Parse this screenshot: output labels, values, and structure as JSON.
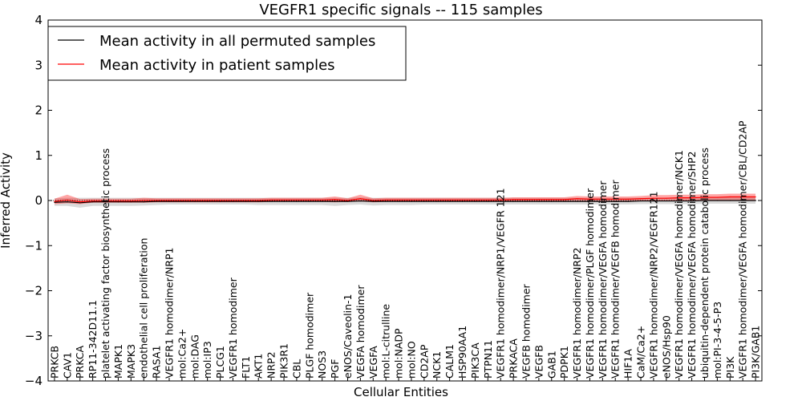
{
  "chart_data": {
    "type": "line",
    "title": "VEGFR1 specific signals -- 115 samples",
    "xlabel": "Cellular Entities",
    "ylabel": "Inferred Activity",
    "ylim": [
      -4,
      4
    ],
    "yticks": [
      "−4",
      "−3",
      "−2",
      "−1",
      "0",
      "1",
      "2",
      "3",
      "4"
    ],
    "ytick_values": [
      -4,
      -3,
      -2,
      -1,
      0,
      1,
      2,
      3,
      4
    ],
    "grid": false,
    "legend_position": "top-left",
    "categories": [
      "PRKCB",
      "CAV1",
      "PRKCA",
      "RP11-342D11.1",
      "platelet activating factor biosynthetic process",
      "MAPK1",
      "MAPK3",
      "endothelial cell proliferation",
      "RASA1",
      "VEGFR1 homodimer/NRP1",
      "mol:Ca2+",
      "mol:DAG",
      "mol:IP3",
      "PLCG1",
      "VEGFR1 homodimer",
      "FLT1",
      "AKT1",
      "NRP2",
      "PIK3R1",
      "CBL",
      "PLGF homodimer",
      "NOS3",
      "PGF",
      "eNOS/Caveolin-1",
      "VEGFA homodimer",
      "VEGFA",
      "mol:L-citrulline",
      "mol:NADP",
      "mol:NO",
      "CD2AP",
      "NCK1",
      "CALM1",
      "HSP90AA1",
      "PIK3CA",
      "PTPN11",
      "VEGFR1 homodimer/NRP1/VEGFR 121",
      "PRKACA",
      "VEGFB homodimer",
      "VEGFB",
      "GAB1",
      "PDPK1",
      "VEGFR1 homodimer/NRP2",
      "VEGFR1 homodimer/PLGF homodimer",
      "VEGFR1 homodimer/VEGFA homodimer",
      "VEGFR1 homodimer/VEGFB homodimer",
      "HIF1A",
      "CaM/Ca2+",
      "VEGFR1 homodimer/NRP2/VEGFR121",
      "eNOS/Hsp90",
      "VEGFR1 homodimer/VEGFA homodimer/NCK1",
      "VEGFR1 homodimer/VEGFA homodimer/SHP2",
      "ubiquitin-dependent protein catabolic process",
      "mol:PI-3-4-5-P3",
      "PI3K",
      "VEGFR1 homodimer/VEGFA homodimer/CBL/CD2AP",
      "PI3K/GAB1"
    ],
    "series": [
      {
        "name": "Mean activity in all permuted samples",
        "color": "#000000",
        "values": [
          -0.04,
          -0.03,
          -0.05,
          -0.03,
          -0.03,
          -0.03,
          -0.03,
          -0.03,
          -0.02,
          -0.02,
          -0.02,
          -0.02,
          -0.02,
          -0.02,
          -0.02,
          -0.02,
          -0.02,
          -0.02,
          -0.02,
          -0.02,
          -0.02,
          -0.02,
          -0.02,
          -0.02,
          -0.01,
          -0.02,
          -0.02,
          -0.02,
          -0.02,
          -0.02,
          -0.02,
          -0.02,
          -0.02,
          -0.02,
          -0.02,
          -0.02,
          -0.02,
          -0.02,
          -0.02,
          -0.02,
          -0.02,
          -0.02,
          -0.02,
          -0.02,
          -0.02,
          -0.02,
          -0.01,
          -0.01,
          -0.01,
          -0.01,
          -0.01,
          0.0,
          0.0,
          0.0,
          0.0,
          0.0
        ],
        "band_lower": [
          -0.12,
          -0.12,
          -0.16,
          -0.12,
          -0.12,
          -0.12,
          -0.12,
          -0.11,
          -0.1,
          -0.09,
          -0.09,
          -0.09,
          -0.09,
          -0.09,
          -0.09,
          -0.09,
          -0.1,
          -0.1,
          -0.1,
          -0.1,
          -0.1,
          -0.1,
          -0.12,
          -0.1,
          -0.09,
          -0.11,
          -0.1,
          -0.1,
          -0.1,
          -0.09,
          -0.09,
          -0.09,
          -0.09,
          -0.09,
          -0.09,
          -0.09,
          -0.09,
          -0.09,
          -0.09,
          -0.09,
          -0.09,
          -0.09,
          -0.09,
          -0.09,
          -0.09,
          -0.09,
          -0.08,
          -0.08,
          -0.08,
          -0.08,
          -0.08,
          -0.07,
          -0.07,
          -0.07,
          -0.07,
          -0.07
        ],
        "band_upper": [
          0.05,
          0.06,
          0.06,
          0.06,
          0.06,
          0.06,
          0.06,
          0.06,
          0.06,
          0.06,
          0.06,
          0.06,
          0.06,
          0.06,
          0.06,
          0.06,
          0.06,
          0.06,
          0.06,
          0.06,
          0.06,
          0.06,
          0.06,
          0.06,
          0.07,
          0.06,
          0.06,
          0.06,
          0.06,
          0.06,
          0.06,
          0.06,
          0.06,
          0.06,
          0.06,
          0.06,
          0.06,
          0.06,
          0.06,
          0.06,
          0.06,
          0.06,
          0.06,
          0.06,
          0.06,
          0.06,
          0.06,
          0.06,
          0.06,
          0.06,
          0.06,
          0.07,
          0.07,
          0.07,
          0.07,
          0.07
        ]
      },
      {
        "name": "Mean activity in patient samples",
        "color": "#ff0000",
        "values": [
          -0.02,
          0.01,
          -0.03,
          -0.01,
          -0.01,
          -0.01,
          -0.01,
          0.0,
          0.0,
          0.0,
          0.0,
          0.0,
          0.0,
          0.0,
          0.0,
          0.0,
          0.0,
          0.01,
          0.01,
          0.01,
          0.01,
          0.01,
          0.02,
          0.0,
          0.04,
          0.0,
          0.01,
          0.01,
          0.01,
          0.01,
          0.01,
          0.01,
          0.01,
          0.01,
          0.01,
          0.01,
          0.02,
          0.02,
          0.02,
          0.02,
          0.02,
          0.04,
          0.03,
          0.03,
          0.03,
          0.03,
          0.04,
          0.05,
          0.05,
          0.06,
          0.06,
          0.07,
          0.07,
          0.08,
          0.08,
          0.08
        ],
        "band_lower": [
          -0.08,
          -0.06,
          -0.08,
          -0.05,
          -0.05,
          -0.05,
          -0.05,
          -0.05,
          -0.04,
          -0.04,
          -0.04,
          -0.04,
          -0.04,
          -0.04,
          -0.04,
          -0.04,
          -0.04,
          -0.03,
          -0.03,
          -0.03,
          -0.03,
          -0.03,
          -0.04,
          -0.03,
          -0.02,
          -0.04,
          -0.03,
          -0.03,
          -0.03,
          -0.03,
          -0.03,
          -0.03,
          -0.03,
          -0.03,
          -0.03,
          -0.03,
          -0.02,
          -0.02,
          -0.02,
          -0.02,
          -0.02,
          -0.01,
          -0.02,
          -0.02,
          -0.02,
          -0.02,
          -0.01,
          0.0,
          0.0,
          0.0,
          0.0,
          0.01,
          0.01,
          0.01,
          0.01,
          0.01
        ],
        "band_upper": [
          0.04,
          0.13,
          0.03,
          0.04,
          0.04,
          0.04,
          0.04,
          0.06,
          0.05,
          0.05,
          0.05,
          0.05,
          0.05,
          0.05,
          0.05,
          0.05,
          0.05,
          0.06,
          0.06,
          0.06,
          0.06,
          0.06,
          0.09,
          0.05,
          0.13,
          0.05,
          0.06,
          0.06,
          0.06,
          0.06,
          0.06,
          0.06,
          0.06,
          0.06,
          0.06,
          0.06,
          0.07,
          0.07,
          0.07,
          0.07,
          0.07,
          0.1,
          0.09,
          0.09,
          0.09,
          0.09,
          0.1,
          0.12,
          0.12,
          0.13,
          0.13,
          0.14,
          0.14,
          0.15,
          0.15,
          0.15
        ]
      }
    ]
  }
}
